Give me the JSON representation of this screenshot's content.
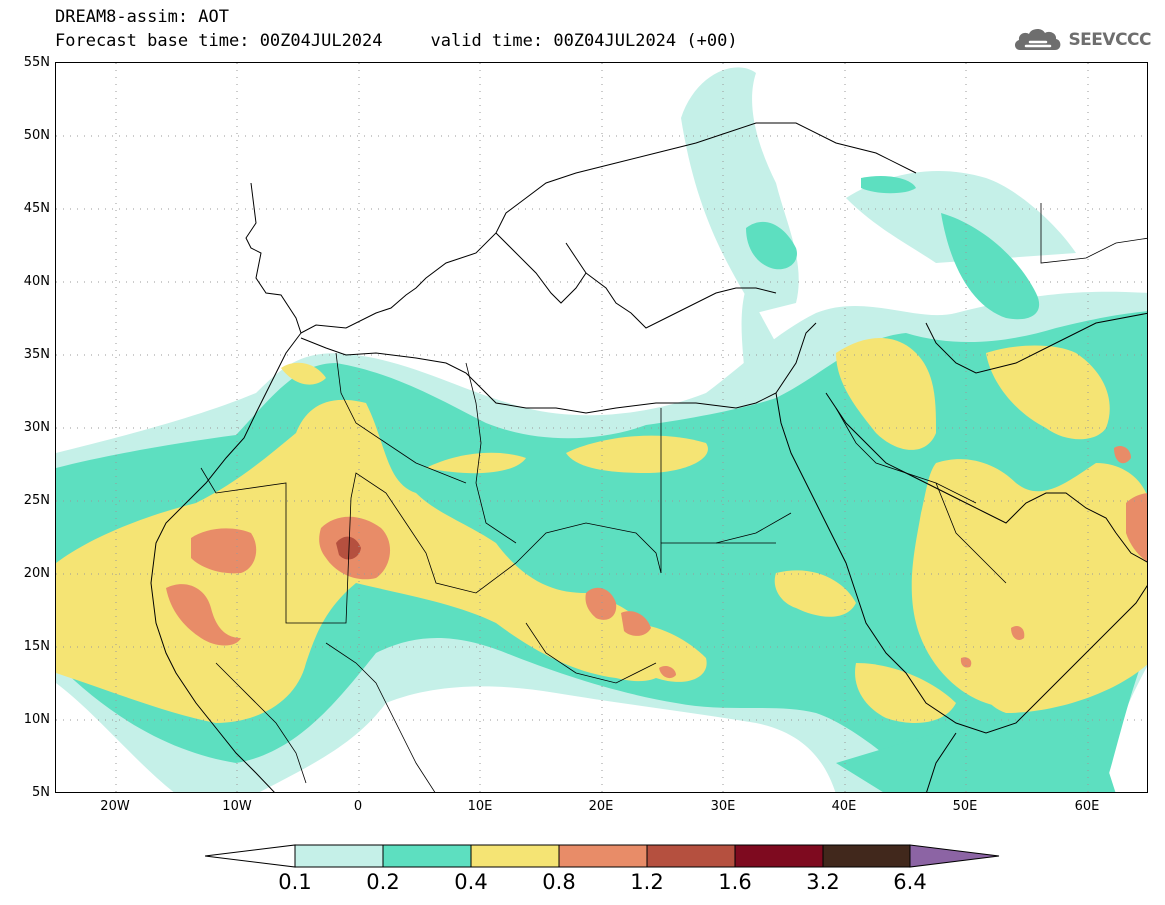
{
  "header": {
    "title_line1": "DREAM8-assim: AOT",
    "base_time": "Forecast base time: 00Z04JUL2024",
    "valid_time": "valid time: 00Z04JUL2024 (+00)",
    "logo_text": "SEEVCCC",
    "logo_icon": "cloud-icon"
  },
  "map": {
    "variable": "AOT",
    "projection": "lat-lon",
    "lon_range": [
      -25,
      65
    ],
    "lat_range": [
      5,
      55
    ],
    "grid": "dotted",
    "lat_labels": [
      "55N",
      "50N",
      "45N",
      "40N",
      "35N",
      "30N",
      "25N",
      "20N",
      "15N",
      "10N",
      "5N"
    ],
    "lon_labels": [
      "20W",
      "10W",
      "0",
      "10E",
      "20E",
      "30E",
      "40E",
      "50E",
      "60E"
    ]
  },
  "colorbar": {
    "labels": [
      "0.1",
      "0.2",
      "0.4",
      "0.8",
      "1.2",
      "1.6",
      "3.2",
      "6.4"
    ],
    "colors": [
      "#ffffff",
      "#c5f0e8",
      "#5ddfc0",
      "#f5e474",
      "#e88c68",
      "#b5503f",
      "#7e0a1f",
      "#41281c",
      "#8c64a4"
    ]
  },
  "colors": {
    "c1": "#c5f0e8",
    "c2": "#5ddfc0",
    "c3": "#f5e474",
    "c4": "#e88c68",
    "c5": "#b5503f",
    "c6": "#7e0a1f"
  }
}
